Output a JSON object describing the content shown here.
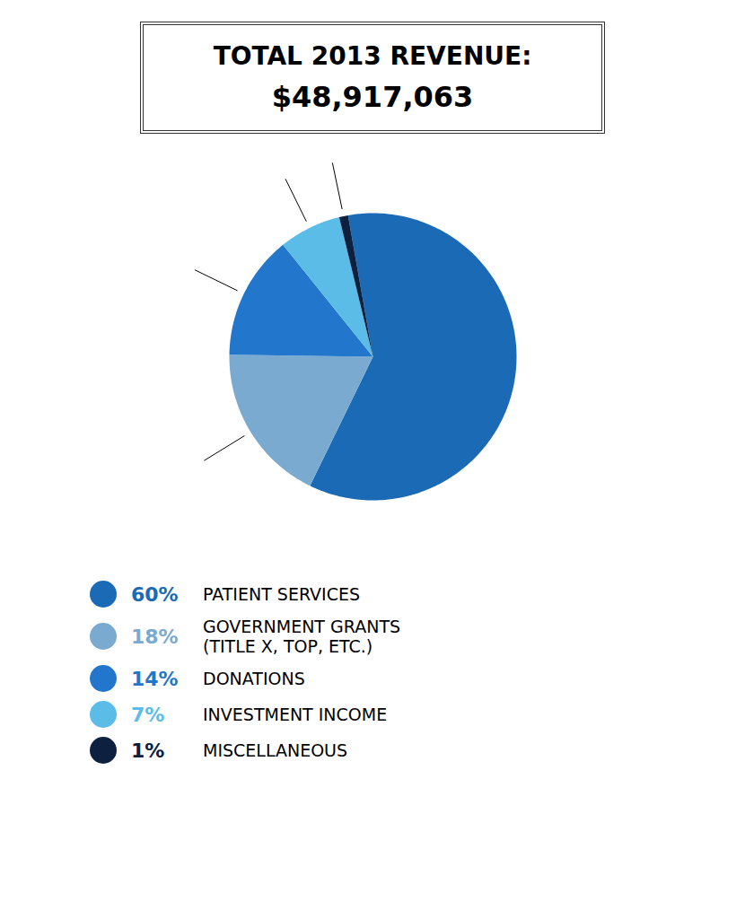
{
  "chart_data": {
    "type": "pie",
    "title": "TOTAL 2013 REVENUE:",
    "subtitle": "$48,917,063",
    "categories": [
      "PATIENT SERVICES",
      "GOVERNMENT GRANTS\n(TITLE X, TOP, ETC.)",
      "DONATIONS",
      "INVESTMENT INCOME",
      "MISCELLANEOUS"
    ],
    "values": [
      60,
      18,
      14,
      7,
      1
    ],
    "value_labels": [
      "60%",
      "18%",
      "14%",
      "7%",
      "1%"
    ],
    "colors": [
      "#1a6ab5",
      "#7aaad0",
      "#2277cc",
      "#5bbce8",
      "#0d2040"
    ],
    "legend": "bottom"
  }
}
